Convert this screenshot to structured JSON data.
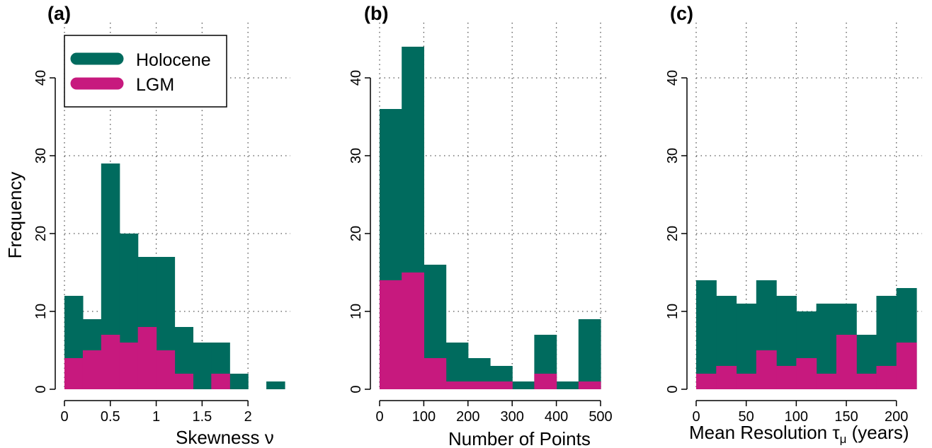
{
  "colors": {
    "holocene": "#006b5e",
    "lgm": "#c7197e",
    "grid": "#555555"
  },
  "ylabel": "Frequency",
  "legend": {
    "entries": [
      "Holocene",
      "LGM"
    ]
  },
  "chart_data": [
    {
      "type": "bar",
      "panel": "(a)",
      "xlabel": "Skewness ν",
      "xlim": [
        0,
        2.4
      ],
      "ylim": [
        0,
        44
      ],
      "xticks": [
        0,
        0.5,
        1,
        1.5,
        2
      ],
      "xtick_labels": [
        "0",
        "0.5",
        "1",
        "1.5",
        "2"
      ],
      "yticks": [
        0,
        10,
        20,
        30,
        40
      ],
      "ytick_labels": [
        "0",
        "10",
        "20",
        "30",
        "40"
      ],
      "grid": true,
      "bin_edges": [
        0,
        0.2,
        0.4,
        0.6,
        0.8,
        1.0,
        1.2,
        1.4,
        1.6,
        1.8,
        2.0,
        2.2,
        2.4
      ],
      "series": [
        {
          "name": "Holocene",
          "values": [
            12,
            9,
            29,
            20,
            17,
            17,
            8,
            6,
            6,
            2,
            0,
            1
          ]
        },
        {
          "name": "LGM",
          "values": [
            4,
            5,
            7,
            6,
            8,
            5,
            2,
            0,
            2,
            0,
            0,
            0
          ]
        }
      ]
    },
    {
      "type": "bar",
      "panel": "(b)",
      "xlabel": "Number of Points",
      "xlim": [
        0,
        500
      ],
      "ylim": [
        0,
        44
      ],
      "xticks": [
        0,
        100,
        200,
        300,
        400,
        500
      ],
      "xtick_labels": [
        "0",
        "100",
        "200",
        "300",
        "400",
        "500"
      ],
      "yticks": [
        0,
        10,
        20,
        30,
        40
      ],
      "ytick_labels": [
        "0",
        "10",
        "20",
        "30",
        "40"
      ],
      "grid": true,
      "bin_edges": [
        0,
        50,
        100,
        150,
        200,
        250,
        300,
        350,
        400,
        450,
        500
      ],
      "series": [
        {
          "name": "Holocene",
          "values": [
            36,
            44,
            16,
            6,
            4,
            3,
            1,
            7,
            1,
            9
          ]
        },
        {
          "name": "LGM",
          "values": [
            14,
            15,
            4,
            1,
            1,
            1,
            0,
            2,
            0,
            1
          ]
        }
      ]
    },
    {
      "type": "bar",
      "panel": "(c)",
      "xlabel": "Mean Resolution τ_μ (years)",
      "xlim": [
        0,
        220
      ],
      "ylim": [
        0,
        44
      ],
      "xticks": [
        0,
        50,
        100,
        150,
        200
      ],
      "xtick_labels": [
        "0",
        "50",
        "100",
        "150",
        "200"
      ],
      "yticks": [
        0,
        10,
        20,
        30,
        40
      ],
      "ytick_labels": [
        "0",
        "10",
        "20",
        "30",
        "40"
      ],
      "grid": true,
      "bin_edges": [
        0,
        20,
        40,
        60,
        80,
        100,
        120,
        140,
        160,
        180,
        200,
        220
      ],
      "series": [
        {
          "name": "Holocene",
          "values": [
            14,
            12,
            11,
            14,
            12,
            10,
            11,
            11,
            7,
            12,
            13
          ]
        },
        {
          "name": "LGM",
          "values": [
            2,
            3,
            2,
            5,
            3,
            4,
            2,
            7,
            2,
            3,
            6
          ]
        }
      ]
    }
  ]
}
